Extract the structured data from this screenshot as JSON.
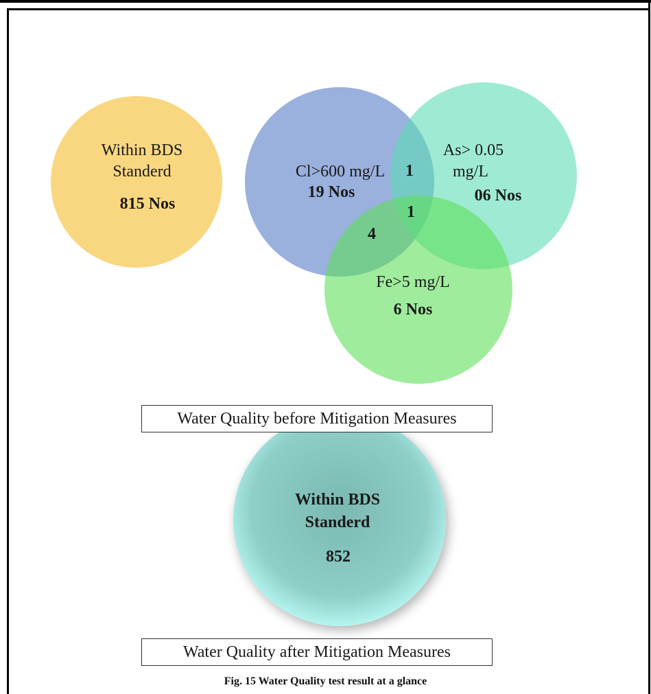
{
  "venn_before": {
    "within_bds": {
      "line1": "Within BDS",
      "line2": "Standerd",
      "count": "815 Nos",
      "color": "#f9d57a"
    },
    "chloride": {
      "label": "Cl>600 mg/L",
      "count": "19 Nos",
      "color": "#8fa6d6"
    },
    "arsenic": {
      "line1": "As> 0.05",
      "line2": "mg/L",
      "count": "06 Nos",
      "color": "#8ee3c8"
    },
    "iron": {
      "label": "Fe>5 mg/L",
      "count": "6 Nos",
      "color": "#8fe58a"
    },
    "overlap_cl_as": "1",
    "overlap_cl_as_fe": "1",
    "overlap_cl_fe": "4"
  },
  "before_label": "Water Quality before Mitigation Measures",
  "after": {
    "line1": "Within BDS",
    "line2": "Standerd",
    "count": "852",
    "color": "#6fd3c8"
  },
  "after_label": "Water Quality after Mitigation Measures",
  "caption": "Fig. 15 Water Quality test result at a glance"
}
